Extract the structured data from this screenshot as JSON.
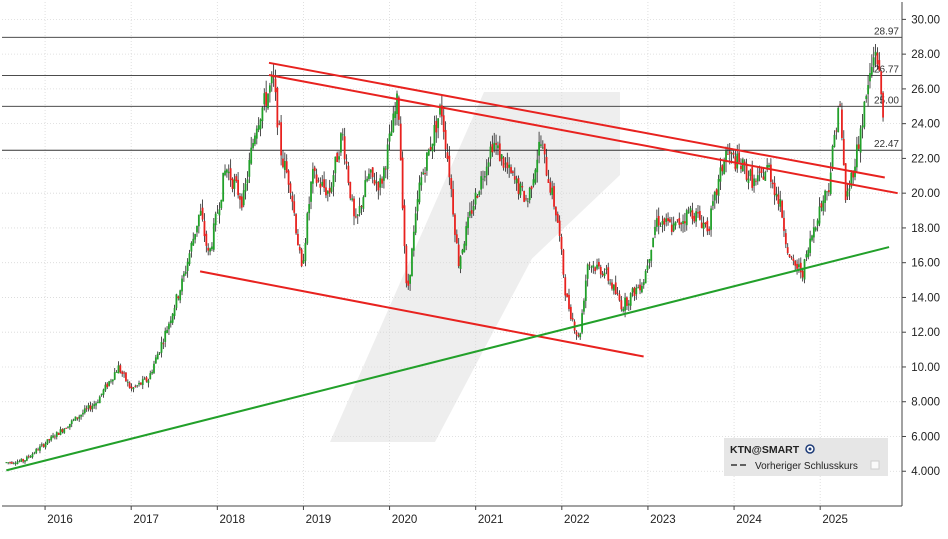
{
  "chart_data": {
    "type": "candlestick",
    "ticker_label": "KTN@SMART",
    "legend_entries": [
      {
        "label": "Vorheriger Schlusskurs",
        "style": "dashed",
        "color": "#333333"
      }
    ],
    "legend_placement": "bottom-right",
    "y_ticks": [
      "30.00",
      "28.00",
      "26.00",
      "24.00",
      "22.00",
      "20.00",
      "18.00",
      "16.00",
      "14.00",
      "12.00",
      "10.00",
      "8.000",
      "6.000",
      "4.000"
    ],
    "x_ticks": [
      "2016",
      "2017",
      "2018",
      "2019",
      "2020",
      "2021",
      "2022",
      "2023",
      "2024",
      "2025"
    ],
    "ylim": [
      2.0,
      31.0
    ],
    "xlim": [
      2015.5,
      2025.95
    ],
    "horizontal_levels": [
      {
        "value": 28.97,
        "label": "28.97"
      },
      {
        "value": 26.77,
        "label": "26.77"
      },
      {
        "value": 25.0,
        "label": "25.00"
      },
      {
        "value": 22.47,
        "label": "22.47"
      }
    ],
    "trendlines": [
      {
        "name": "upper-channel-top",
        "color": "#e8221f",
        "from": [
          2018.6,
          27.5
        ],
        "to": [
          2025.75,
          20.9
        ]
      },
      {
        "name": "upper-channel-bottom",
        "color": "#e8221f",
        "from": [
          2018.6,
          26.8
        ],
        "to": [
          2025.9,
          20.0
        ]
      },
      {
        "name": "lower-channel",
        "color": "#e8221f",
        "from": [
          2017.8,
          15.5
        ],
        "to": [
          2022.95,
          10.6
        ]
      },
      {
        "name": "long-term-support",
        "color": "#22a02a",
        "from": [
          2015.55,
          4.05
        ],
        "to": [
          2025.8,
          16.9
        ]
      }
    ],
    "colors": {
      "up": "#22a02a",
      "down": "#e8221f",
      "wick": "#222222",
      "grid": "#d8d8d8",
      "level": "#333333",
      "watermark": "#eeeeee"
    },
    "price_path": [
      [
        2015.55,
        4.5
      ],
      [
        2015.75,
        4.6
      ],
      [
        2016.0,
        5.6
      ],
      [
        2016.3,
        6.8
      ],
      [
        2016.6,
        8.0
      ],
      [
        2016.85,
        10.0
      ],
      [
        2017.0,
        8.7
      ],
      [
        2017.2,
        9.3
      ],
      [
        2017.4,
        12.0
      ],
      [
        2017.6,
        15.0
      ],
      [
        2017.8,
        19.0
      ],
      [
        2017.9,
        16.3
      ],
      [
        2018.1,
        21.5
      ],
      [
        2018.3,
        19.5
      ],
      [
        2018.45,
        24.0
      ],
      [
        2018.65,
        26.5
      ],
      [
        2018.75,
        22.0
      ],
      [
        2018.85,
        20.5
      ],
      [
        2018.98,
        15.5
      ],
      [
        2019.1,
        21.0
      ],
      [
        2019.3,
        20.0
      ],
      [
        2019.45,
        23.5
      ],
      [
        2019.6,
        18.0
      ],
      [
        2019.75,
        21.0
      ],
      [
        2019.9,
        20.5
      ],
      [
        2020.1,
        25.5
      ],
      [
        2020.2,
        14.0
      ],
      [
        2020.35,
        20.5
      ],
      [
        2020.6,
        25.0
      ],
      [
        2020.7,
        21.0
      ],
      [
        2020.8,
        16.0
      ],
      [
        2020.95,
        19.0
      ],
      [
        2021.2,
        23.0
      ],
      [
        2021.35,
        21.5
      ],
      [
        2021.6,
        19.5
      ],
      [
        2021.75,
        23.0
      ],
      [
        2021.95,
        18.5
      ],
      [
        2022.05,
        14.0
      ],
      [
        2022.2,
        11.5
      ],
      [
        2022.3,
        16.0
      ],
      [
        2022.5,
        15.5
      ],
      [
        2022.7,
        13.5
      ],
      [
        2022.95,
        15.0
      ],
      [
        2023.1,
        18.5
      ],
      [
        2023.3,
        18.0
      ],
      [
        2023.5,
        19.0
      ],
      [
        2023.7,
        18.0
      ],
      [
        2023.9,
        22.3
      ],
      [
        2024.1,
        21.5
      ],
      [
        2024.25,
        20.5
      ],
      [
        2024.4,
        21.5
      ],
      [
        2024.55,
        19.0
      ],
      [
        2024.65,
        16.0
      ],
      [
        2024.8,
        15.5
      ],
      [
        2024.95,
        18.5
      ],
      [
        2025.1,
        20.5
      ],
      [
        2025.22,
        25.5
      ],
      [
        2025.3,
        19.5
      ],
      [
        2025.45,
        23.0
      ],
      [
        2025.55,
        26.0
      ],
      [
        2025.65,
        28.5
      ],
      [
        2025.73,
        24.5
      ]
    ]
  }
}
